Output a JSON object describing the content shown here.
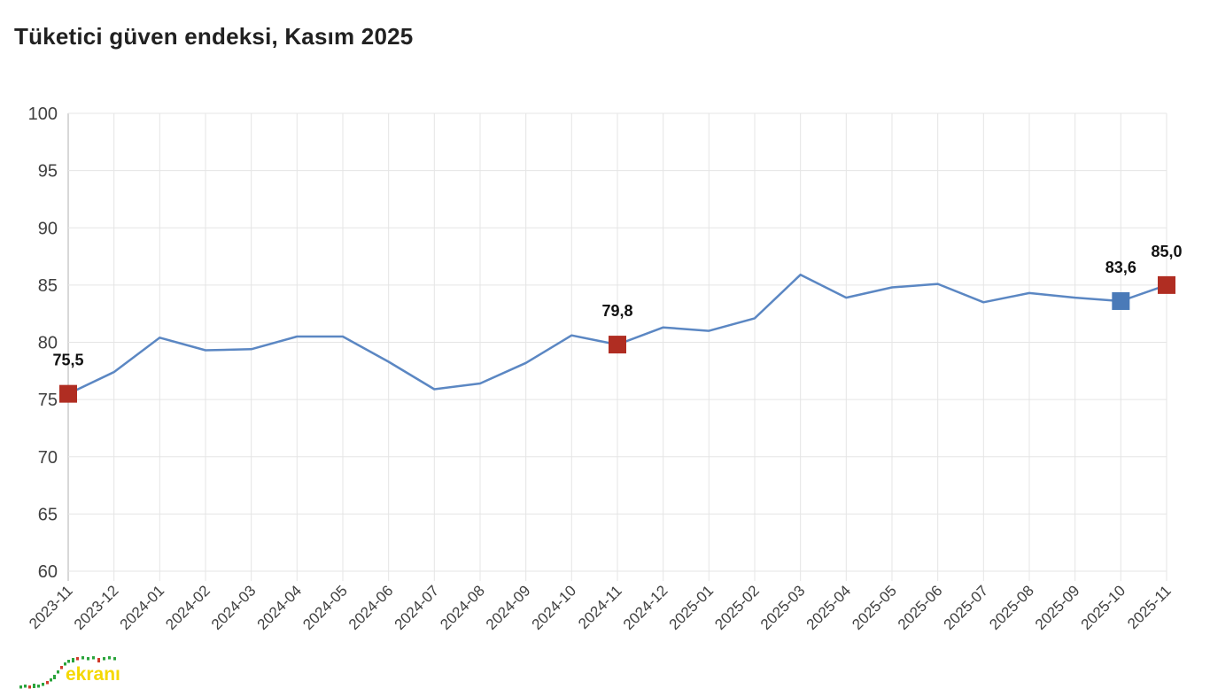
{
  "page": {
    "title": "Tüketici güven endeksi, Kasım 2025"
  },
  "chart_data": {
    "type": "line",
    "title": "Tüketici güven endeksi, Kasım 2025",
    "categories": [
      "2023-11",
      "2023-12",
      "2024-01",
      "2024-02",
      "2024-03",
      "2024-04",
      "2024-05",
      "2024-06",
      "2024-07",
      "2024-08",
      "2024-09",
      "2024-10",
      "2024-11",
      "2024-12",
      "2025-01",
      "2025-02",
      "2025-03",
      "2025-04",
      "2025-05",
      "2025-06",
      "2025-07",
      "2025-08",
      "2025-09",
      "2025-10",
      "2025-11"
    ],
    "values": [
      75.5,
      77.4,
      80.4,
      79.3,
      79.4,
      80.5,
      80.5,
      78.3,
      75.9,
      76.4,
      78.2,
      80.6,
      79.8,
      81.3,
      81.0,
      82.1,
      85.9,
      83.9,
      84.8,
      85.1,
      83.5,
      84.3,
      83.9,
      83.6,
      85.0
    ],
    "xlabel": "",
    "ylabel": "",
    "ylim": [
      60,
      100
    ],
    "ytick_step": 5,
    "grid": true,
    "legend": "none",
    "line_color": "#5b87c3",
    "grid_color": "#e5e5e5",
    "axis_line_color": "#b0b0b0",
    "tick_label_color": "#404040",
    "annotation_color": "#111111",
    "highlights": [
      {
        "index": 0,
        "label": "75,5",
        "color": "#b02d22"
      },
      {
        "index": 12,
        "label": "79,8",
        "color": "#b02d22"
      },
      {
        "index": 23,
        "label": "83,6",
        "color": "#4a7ab8"
      },
      {
        "index": 24,
        "label": "85,0",
        "color": "#b02d22"
      }
    ]
  },
  "logo": {
    "text": "ekranı",
    "text_color": "#f5d800",
    "up_color": "#2aa43c",
    "down_color": "#d03a2a"
  }
}
